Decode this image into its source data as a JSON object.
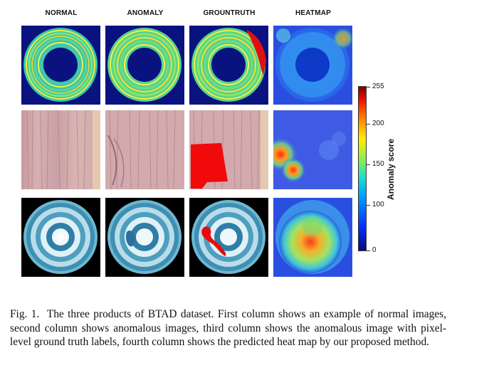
{
  "figure": {
    "column_headers": [
      "NORMAL",
      "ANOMALY",
      "GROUNTRUTH",
      "HEATMAP"
    ],
    "colorbar": {
      "title": "Anomaly score",
      "ticks": [
        "255",
        "200",
        "150",
        "100",
        "0"
      ],
      "colors": [
        "#0a0a7a",
        "#0033ff",
        "#00aaff",
        "#22ddcc",
        "#88ee55",
        "#ffee00",
        "#ff8800",
        "#ee1100",
        "#7a0000"
      ]
    },
    "rows": [
      {
        "product": "product-01-ring"
      },
      {
        "product": "product-02-wood"
      },
      {
        "product": "product-03-tile"
      }
    ]
  },
  "caption": {
    "label": "Fig. 1.",
    "text": "The three products of BTAD dataset. First column shows an example of normal images, second column shows anomalous images, third column shows the anomalous image with pixel-level ground truth labels, fourth column shows the predicted heat map by our proposed method."
  }
}
